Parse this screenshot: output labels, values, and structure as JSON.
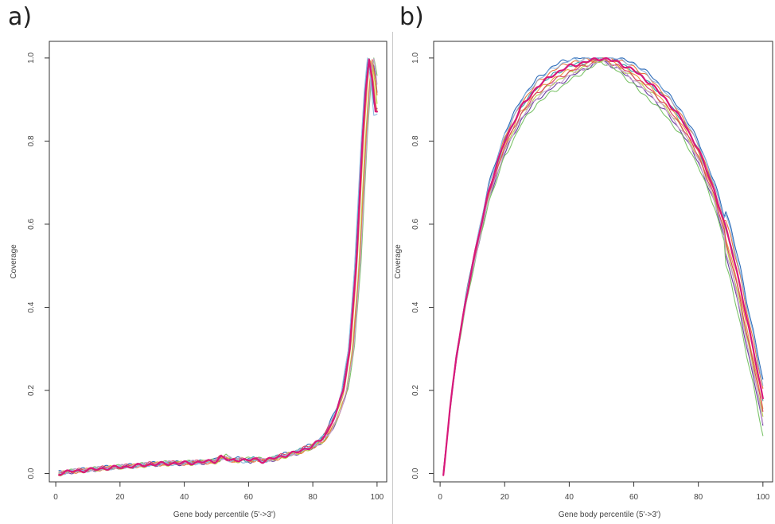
{
  "chart_data": [
    {
      "type": "line",
      "panel_label": "a)",
      "xlabel": "Gene body percentile (5'->3')",
      "ylabel": "Coverage",
      "xlim": [
        -2,
        103
      ],
      "ylim": [
        -0.02,
        1.04
      ],
      "xticks": [
        "0",
        "20",
        "40",
        "60",
        "80",
        "100"
      ],
      "yticks": [
        "0.0",
        "0.2",
        "0.4",
        "0.6",
        "0.8",
        "1.0"
      ],
      "grid": false,
      "legend": "none",
      "base_curve": {
        "x": [
          1,
          5,
          10,
          15,
          20,
          25,
          30,
          35,
          40,
          45,
          50,
          52,
          55,
          58,
          60,
          62,
          65,
          70,
          75,
          80,
          83,
          85,
          88,
          90,
          92,
          94,
          96,
          97,
          98,
          99,
          100
        ],
        "y": [
          0.0,
          0.005,
          0.008,
          0.012,
          0.015,
          0.018,
          0.022,
          0.024,
          0.025,
          0.027,
          0.03,
          0.04,
          0.03,
          0.035,
          0.03,
          0.035,
          0.03,
          0.04,
          0.05,
          0.065,
          0.08,
          0.1,
          0.15,
          0.2,
          0.3,
          0.5,
          0.8,
          0.92,
          1.0,
          0.95,
          0.87
        ]
      },
      "series_colors": [
        "#2b6ab8",
        "#6a3fa0",
        "#3aa0a8",
        "#7cc46a",
        "#b8d050",
        "#e8a040",
        "#e87840",
        "#d84060",
        "#c8a0d0",
        "#90b8e0",
        "#d8187a"
      ],
      "series_offsets": [
        0.006,
        -0.003,
        0.004,
        0.009,
        -0.005,
        0.002,
        -0.002,
        0.005,
        0.007,
        -0.004,
        0.0
      ],
      "series_shift": [
        -0.8,
        0.6,
        -0.4,
        1.0,
        0.3,
        -0.2,
        0.5,
        -0.6,
        0.8,
        -1.0,
        -0.5
      ]
    },
    {
      "type": "line",
      "panel_label": "b)",
      "xlabel": "Gene body percentile (5'->3')",
      "ylabel": "Coverage",
      "xlim": [
        -2,
        103
      ],
      "ylim": [
        -0.02,
        1.04
      ],
      "xticks": [
        "0",
        "20",
        "40",
        "60",
        "80",
        "100"
      ],
      "yticks": [
        "0.0",
        "0.2",
        "0.4",
        "0.6",
        "0.8",
        "1.0"
      ],
      "grid": false,
      "legend": "none",
      "base_curve": {
        "x": [
          1,
          3,
          5,
          8,
          10,
          15,
          20,
          25,
          30,
          35,
          40,
          45,
          50,
          55,
          60,
          65,
          70,
          75,
          80,
          85,
          90,
          93,
          95,
          97,
          99,
          100
        ],
        "y": [
          0.0,
          0.15,
          0.28,
          0.42,
          0.5,
          0.68,
          0.8,
          0.88,
          0.93,
          0.96,
          0.98,
          0.99,
          1.0,
          0.99,
          0.97,
          0.94,
          0.9,
          0.85,
          0.78,
          0.68,
          0.55,
          0.45,
          0.37,
          0.3,
          0.22,
          0.18
        ]
      },
      "series_colors": [
        "#2b6ab8",
        "#6a3fa0",
        "#3aa0a8",
        "#7cc46a",
        "#b8d050",
        "#e8a040",
        "#e87840",
        "#d84060",
        "#c8a0d0",
        "#90b8e0",
        "#d8187a"
      ],
      "series_offsets": [
        0.02,
        -0.03,
        0.0,
        -0.04,
        -0.02,
        -0.01,
        0.01,
        -0.015,
        -0.025,
        0.015,
        0.0
      ],
      "series_shift": [
        0.0,
        0.0,
        0.0,
        0.0,
        0.0,
        0.0,
        0.0,
        0.0,
        0.0,
        0.0,
        0.0
      ]
    }
  ]
}
